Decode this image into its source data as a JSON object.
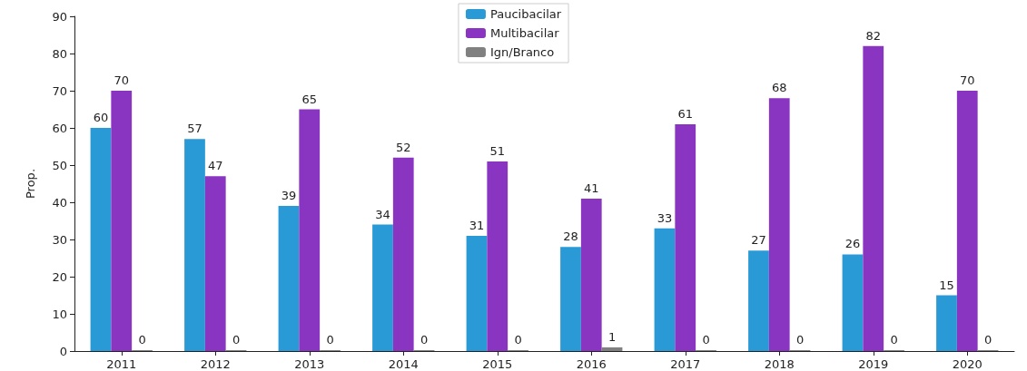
{
  "chart_data": {
    "type": "bar",
    "ylabel": "Prop.",
    "categories": [
      "2011",
      "2012",
      "2013",
      "2014",
      "2015",
      "2016",
      "2017",
      "2018",
      "2019",
      "2020"
    ],
    "series": [
      {
        "name": "Paucibacilar",
        "color": "#2a9ad6",
        "values": [
          60,
          57,
          39,
          34,
          31,
          28,
          33,
          27,
          26,
          15
        ]
      },
      {
        "name": "Multibacilar",
        "color": "#8a34c2",
        "values": [
          70,
          47,
          65,
          52,
          51,
          41,
          61,
          68,
          82,
          70
        ]
      },
      {
        "name": "Ign/Branco",
        "color": "#808080",
        "values": [
          0,
          0,
          0,
          0,
          0,
          1,
          0,
          0,
          0,
          0
        ]
      }
    ],
    "ylim": [
      0,
      90
    ],
    "yticks": [
      0,
      10,
      20,
      30,
      40,
      50,
      60,
      70,
      80,
      90
    ],
    "grid": false,
    "legend": "top",
    "data_labels": true
  }
}
